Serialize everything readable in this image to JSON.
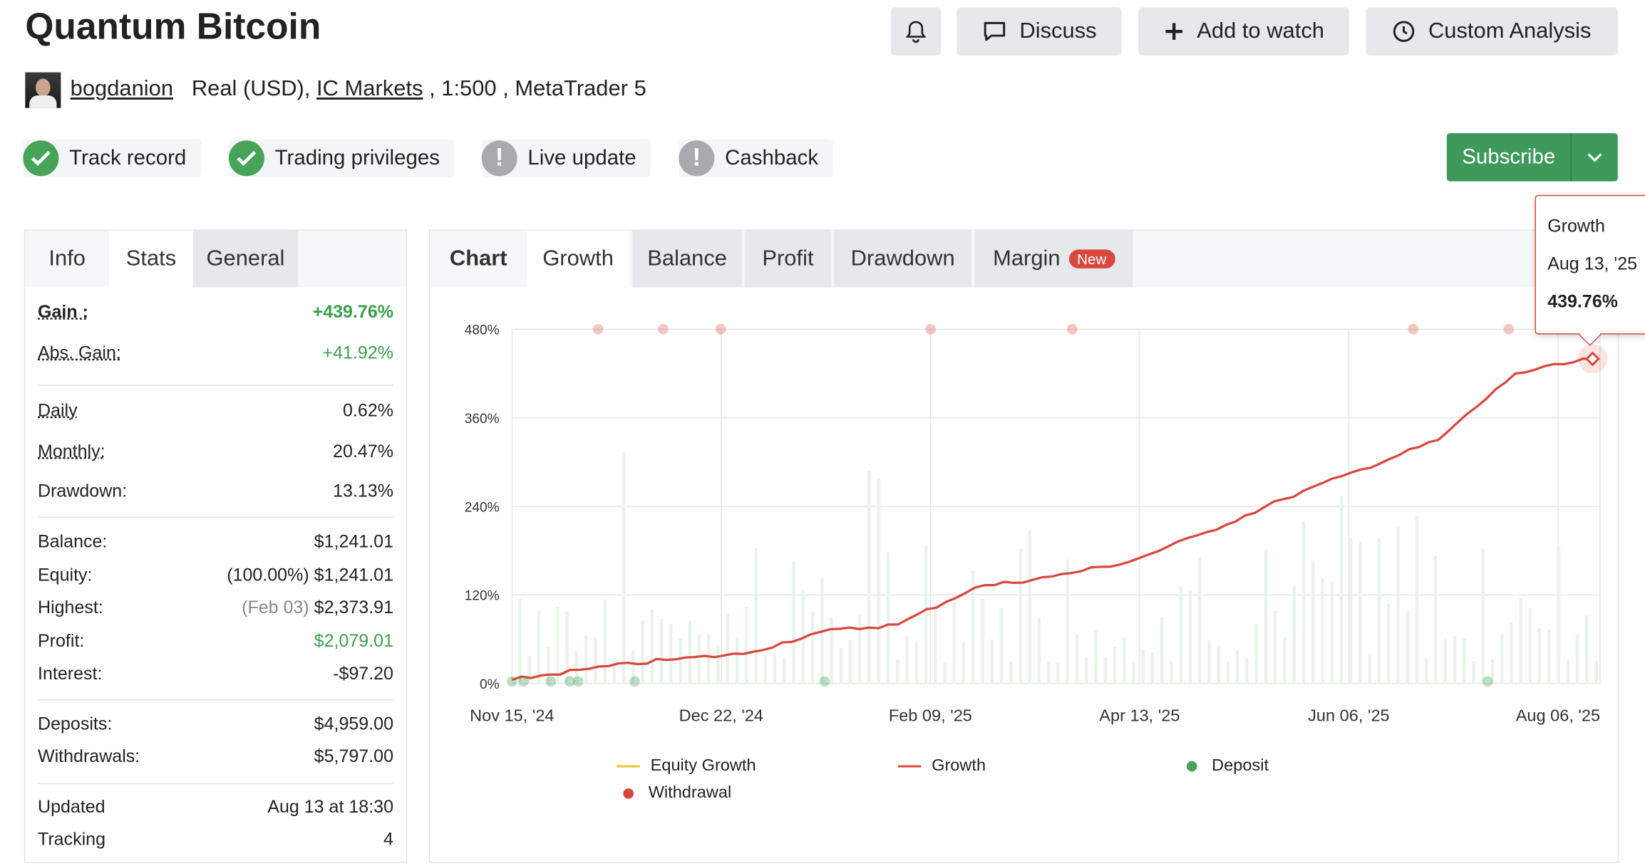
{
  "header": {
    "title": "Quantum Bitcoin",
    "user": "bogdanion",
    "account_type": "Real (USD),",
    "broker": "IC Markets",
    "leverage": ", 1:500 , MetaTrader 5"
  },
  "actions": {
    "discuss": "Discuss",
    "add_to_watch": "Add to watch",
    "custom_analysis": "Custom Analysis",
    "subscribe": "Subscribe"
  },
  "badges": [
    {
      "label": "Track record",
      "status": "ok"
    },
    {
      "label": "Trading privileges",
      "status": "ok"
    },
    {
      "label": "Live update",
      "status": "warn"
    },
    {
      "label": "Cashback",
      "status": "warn"
    }
  ],
  "left_tabs": [
    "Info",
    "Stats",
    "General"
  ],
  "stats": {
    "gain": {
      "k": "Gain :",
      "v": "+439.76%"
    },
    "abs_gain": {
      "k": "Abs. Gain:",
      "v": "+41.92%"
    },
    "daily": {
      "k": "Daily",
      "v": "0.62%"
    },
    "monthly": {
      "k": "Monthly:",
      "v": "20.47%"
    },
    "drawdown": {
      "k": "Drawdown:",
      "v": "13.13%"
    },
    "balance": {
      "k": "Balance:",
      "v": "$1,241.01"
    },
    "equity": {
      "k": "Equity:",
      "pre": "(100.00%)",
      "v": "$1,241.01"
    },
    "highest": {
      "k": "Highest:",
      "pre": "(Feb 03)",
      "v": "$2,373.91"
    },
    "profit": {
      "k": "Profit:",
      "v": "$2,079.01"
    },
    "interest": {
      "k": "Interest:",
      "v": "-$97.20"
    },
    "deposits": {
      "k": "Deposits:",
      "v": "$4,959.00"
    },
    "withdrawals": {
      "k": "Withdrawals:",
      "v": "$5,797.00"
    },
    "updated": {
      "k": "Updated",
      "v": "Aug 13 at 18:30"
    },
    "tracking": {
      "k": "Tracking",
      "v": "4"
    }
  },
  "chart_tabs": [
    "Chart",
    "Growth",
    "Balance",
    "Profit",
    "Drawdown",
    "Margin"
  ],
  "margin_badge": "New",
  "tooltip": {
    "series": "Growth",
    "date": "Aug 13, '25",
    "value": "439.76%"
  },
  "colors": {
    "growth": "#d9473d",
    "equity": "#f2c12e",
    "deposit": "#46a358",
    "withdrawal": "#d9473d",
    "accent_green": "#3d9a5b"
  },
  "chart_data": {
    "type": "line",
    "yticks": [
      "0%",
      "120%",
      "240%",
      "360%",
      "480%"
    ],
    "ylim": [
      0,
      480
    ],
    "xticks": [
      "Nov 15, '24",
      "Dec 22, '24",
      "Feb 09, '25",
      "Apr 13, '25",
      "Jun 06, '25",
      "Aug 06, '25"
    ],
    "legend": [
      "Equity Growth",
      "Growth",
      "Deposit",
      "Withdrawal"
    ],
    "series": [
      {
        "name": "Growth",
        "x": [
          "Nov 15, '24",
          "Dec 05, '24",
          "Dec 22, '24",
          "Jan 10, '25",
          "Jan 25, '25",
          "Feb 09, '25",
          "Mar 01, '25",
          "Mar 20, '25",
          "Apr 13, '25",
          "May 05, '25",
          "Jun 06, '25",
          "Jul 01, '25",
          "Jul 15, '25",
          "Aug 06, '25",
          "Aug 13, '25"
        ],
        "values": [
          5,
          20,
          32,
          40,
          70,
          80,
          130,
          145,
          165,
          205,
          250,
          290,
          330,
          420,
          439.76
        ]
      }
    ]
  }
}
